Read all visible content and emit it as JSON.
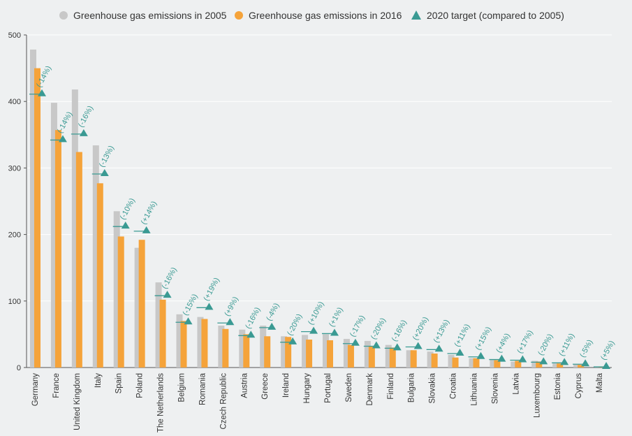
{
  "chart_data": {
    "type": "bar",
    "legend_placement": "top",
    "grid": true,
    "ylim": [
      0,
      500
    ],
    "yticks": [
      "0",
      "100",
      "200",
      "300",
      "400",
      "500"
    ],
    "colors": {
      "series_2005": "#c8c8c8",
      "series_2016": "#f5a33a",
      "target": "#3a9a93"
    },
    "categories": [
      "Germany",
      "France",
      "United Kingdom",
      "Italy",
      "Spain",
      "Poland",
      "The Netherlands",
      "Belgium",
      "Romania",
      "Czech Republic",
      "Austria",
      "Greece",
      "Ireland",
      "Hungary",
      "Portugal",
      "Sweden",
      "Denmark",
      "Finland",
      "Bulgaria",
      "Slovakia",
      "Croatia",
      "Lithuania",
      "Slovenia",
      "Latvia",
      "Luxembourg",
      "Estonia",
      "Cyprus",
      "Malta"
    ],
    "series": [
      {
        "name": "Greenhouse gas emissions in 2005",
        "values": [
          478,
          398,
          418,
          334,
          235,
          180,
          128,
          80,
          76,
          63,
          57,
          63,
          47,
          49,
          50,
          43,
          40,
          34,
          26,
          24,
          19,
          14,
          12,
          9,
          10,
          6,
          5,
          1
        ]
      },
      {
        "name": "Greenhouse gas emissions in 2016",
        "values": [
          450,
          357,
          324,
          277,
          197,
          192,
          102,
          70,
          73,
          58,
          50,
          47,
          46,
          42,
          41,
          34,
          32,
          30,
          26,
          21,
          15,
          14,
          11,
          10,
          9,
          6,
          4,
          1
        ]
      },
      {
        "name": "2020 target (compared to 2005)",
        "values": [
          411,
          342,
          351,
          291,
          212,
          205,
          108,
          68,
          90,
          67,
          48,
          60,
          38,
          54,
          51,
          36,
          32,
          29,
          31,
          27,
          21,
          16,
          12,
          11,
          8,
          7,
          5,
          1
        ]
      }
    ],
    "target_labels": [
      "(-14%)",
      "(-14%)",
      "(-16%)",
      "(-13%)",
      "(-10%)",
      "(+14%)",
      "(-16%)",
      "(-15%)",
      "(+19%)",
      "(+9%)",
      "(-16%)",
      "(-4%)",
      "(-20%)",
      "(+10%)",
      "(+1%)",
      "(-17%)",
      "(-20%)",
      "(-16%)",
      "(+20%)",
      "(+13%)",
      "(+11%)",
      "(+15%)",
      "(+4%)",
      "(+17%)",
      "(-20%)",
      "(+11%)",
      "(-5%)",
      "(+5%)"
    ]
  }
}
